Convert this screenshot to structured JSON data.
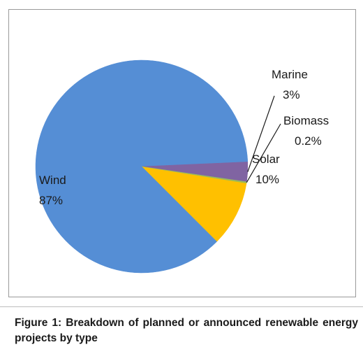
{
  "chart_data": {
    "type": "pie",
    "title": "",
    "slices": [
      {
        "label": "Wind",
        "value": 87,
        "value_label": "87%",
        "color": "#558ed5"
      },
      {
        "label": "Marine",
        "value": 3,
        "value_label": "3%",
        "color": "#8064a2"
      },
      {
        "label": "Biomass",
        "value": 0.2,
        "value_label": "0.2%",
        "color": "#9bbb59"
      },
      {
        "label": "Solar",
        "value": 10,
        "value_label": "10%",
        "color": "#ffc000"
      }
    ],
    "legend": "none",
    "labels": "outside with leader lines for Marine and Biomass"
  },
  "caption": {
    "text": "Figure 1: Breakdown of planned or announced renewable energy projects by type"
  }
}
